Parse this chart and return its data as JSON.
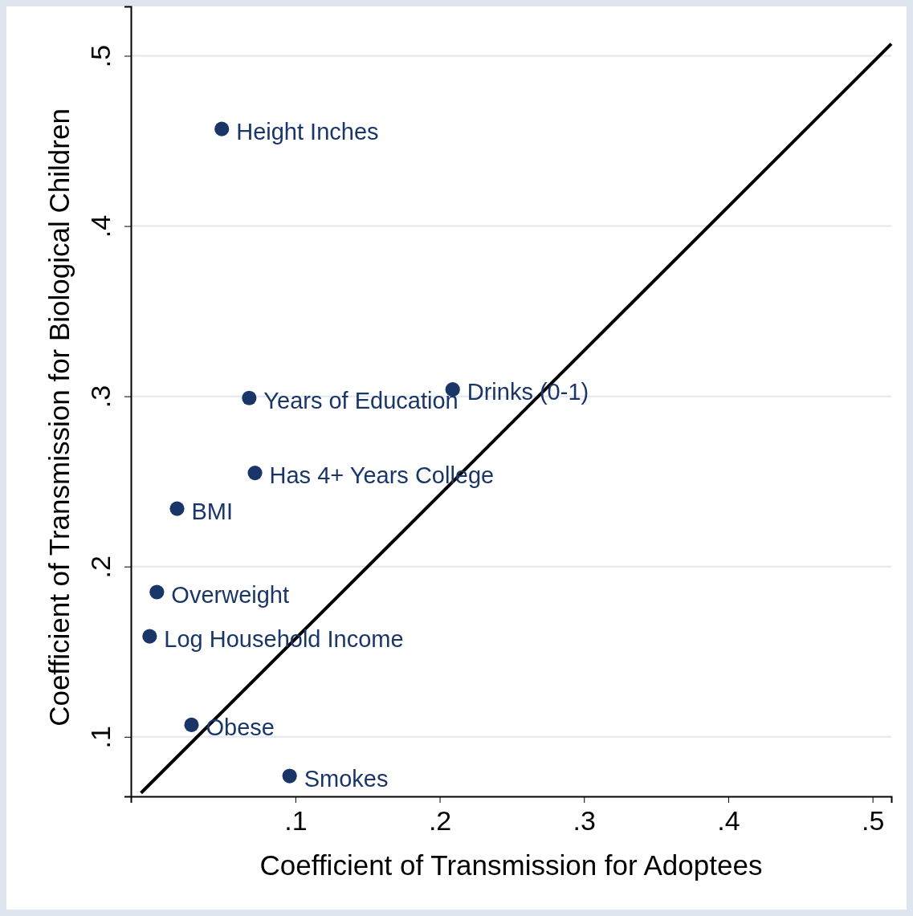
{
  "chart_data": {
    "type": "scatter",
    "xlabel": "Coefficient of Transmission for Adoptees",
    "ylabel": "Coefficient of Transmission for Biological Children",
    "xlim": [
      -0.014,
      0.513
    ],
    "ylim": [
      0.065,
      0.529
    ],
    "xticks": [
      {
        "value": 0.1,
        "label": ".1"
      },
      {
        "value": 0.2,
        "label": ".2"
      },
      {
        "value": 0.3,
        "label": ".3"
      },
      {
        "value": 0.4,
        "label": ".4"
      },
      {
        "value": 0.5,
        "label": ".5"
      }
    ],
    "yticks": [
      {
        "value": 0.1,
        "label": ".1"
      },
      {
        "value": 0.2,
        "label": ".2"
      },
      {
        "value": 0.3,
        "label": ".3"
      },
      {
        "value": 0.4,
        "label": ".4"
      },
      {
        "value": 0.5,
        "label": ".5"
      }
    ],
    "grid": "y",
    "series": [
      {
        "type": "scatter",
        "color": "#1a3668",
        "marker": "circle",
        "x": [
          0.049,
          0.068,
          0.209,
          0.072,
          0.018,
          0.004,
          -0.001,
          0.028,
          0.096
        ],
        "values": [
          0.457,
          0.299,
          0.304,
          0.255,
          0.234,
          0.185,
          0.159,
          0.107,
          0.077
        ]
      },
      {
        "type": "line",
        "color": "#000000",
        "marker": "none",
        "line_style": "solid",
        "x": [
          -0.007,
          0.513
        ],
        "values": [
          0.067,
          0.507
        ]
      }
    ],
    "annotations": [
      {
        "text": "Height Inches",
        "x": 0.049,
        "y": 0.457
      },
      {
        "text": "Years of Education",
        "x": 0.068,
        "y": 0.299
      },
      {
        "text": "Drinks (0-1)",
        "x": 0.209,
        "y": 0.304
      },
      {
        "text": "Has 4+ Years College",
        "x": 0.072,
        "y": 0.255
      },
      {
        "text": "BMI",
        "x": 0.018,
        "y": 0.234
      },
      {
        "text": "Overweight",
        "x": 0.004,
        "y": 0.185
      },
      {
        "text": "Log Household Income",
        "x": -0.001,
        "y": 0.159
      },
      {
        "text": "Obese",
        "x": 0.028,
        "y": 0.107
      },
      {
        "text": "Smokes",
        "x": 0.096,
        "y": 0.077
      }
    ]
  }
}
